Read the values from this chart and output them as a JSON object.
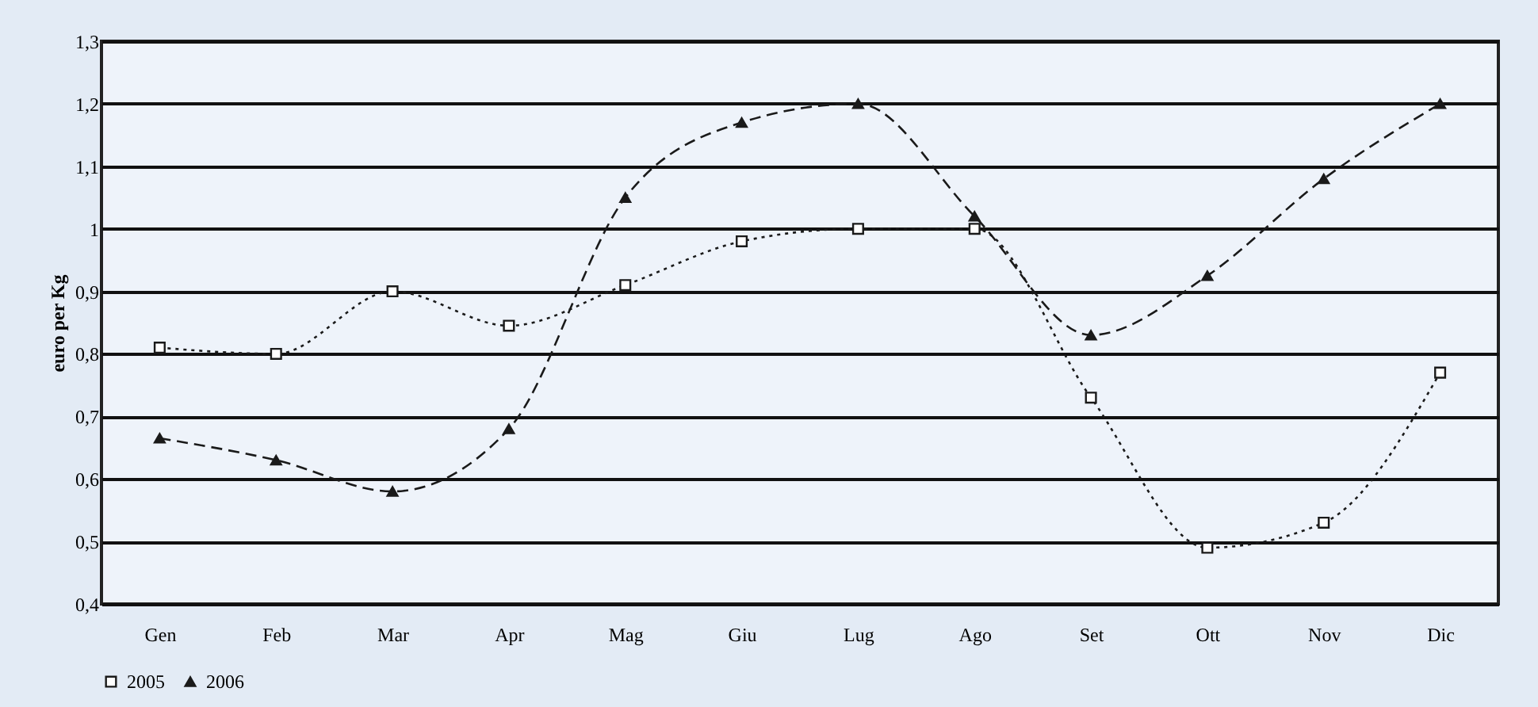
{
  "chart_data": {
    "type": "line",
    "ylabel": "euro per Kg",
    "categories": [
      "Gen",
      "Feb",
      "Mar",
      "Apr",
      "Mag",
      "Giu",
      "Lug",
      "Ago",
      "Set",
      "Ott",
      "Nov",
      "Dic"
    ],
    "series": [
      {
        "name": "2005",
        "color": "#1a1a1a",
        "marker": "square",
        "line_style": "dotted",
        "values": [
          0.81,
          0.8,
          0.9,
          0.845,
          0.91,
          0.98,
          1.0,
          1.0,
          0.73,
          0.49,
          0.53,
          0.77
        ]
      },
      {
        "name": "2006",
        "color": "#1a1a1a",
        "marker": "triangle",
        "line_style": "dashed",
        "values": [
          0.665,
          0.63,
          0.58,
          0.68,
          1.05,
          1.17,
          1.2,
          1.02,
          0.83,
          0.925,
          1.08,
          1.2
        ]
      }
    ],
    "ylim": [
      0.4,
      1.3
    ],
    "yticks": [
      {
        "value": 0.4,
        "label": "0,4"
      },
      {
        "value": 0.5,
        "label": "0,5"
      },
      {
        "value": 0.6,
        "label": "0,6"
      },
      {
        "value": 0.7,
        "label": "0,7"
      },
      {
        "value": 0.8,
        "label": "0,8"
      },
      {
        "value": 0.9,
        "label": "0,9"
      },
      1,
      {
        "value": 1.1,
        "label": "1,1"
      },
      {
        "value": 1.2,
        "label": "1,2"
      },
      {
        "value": 1.3,
        "label": "1,3"
      }
    ],
    "grid": "y",
    "legend": "bottom"
  }
}
